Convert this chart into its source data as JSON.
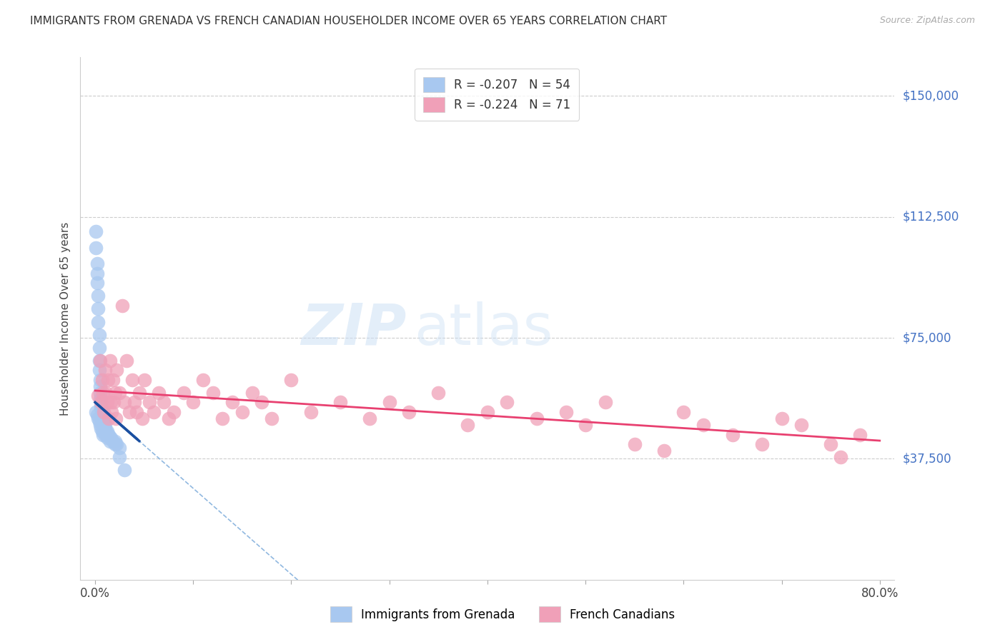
{
  "title": "IMMIGRANTS FROM GRENADA VS FRENCH CANADIAN HOUSEHOLDER INCOME OVER 65 YEARS CORRELATION CHART",
  "source": "Source: ZipAtlas.com",
  "ylabel": "Householder Income Over 65 years",
  "xlabel_ticks": [
    "0.0%",
    "",
    "",
    "",
    "",
    "",
    "",
    "",
    "80.0%"
  ],
  "xlabel_vals": [
    0.0,
    0.1,
    0.2,
    0.3,
    0.4,
    0.5,
    0.6,
    0.7,
    0.8
  ],
  "ytick_labels": [
    "$150,000",
    "$112,500",
    "$75,000",
    "$37,500"
  ],
  "ytick_vals": [
    150000,
    112500,
    75000,
    37500
  ],
  "ylim": [
    0,
    162000
  ],
  "xlim": [
    -0.015,
    0.815
  ],
  "legend1_label": "R = -0.207   N = 54",
  "legend2_label": "R = -0.224   N = 71",
  "scatter_blue_color": "#a8c8f0",
  "scatter_pink_color": "#f0a0b8",
  "trendline_blue_color": "#1a4fa0",
  "trendline_pink_color": "#e84070",
  "trendline_dashed_color": "#90b8e0",
  "watermark_zip": "ZIP",
  "watermark_atlas": "atlas",
  "blue_scatter_x": [
    0.001,
    0.001,
    0.002,
    0.002,
    0.002,
    0.003,
    0.003,
    0.003,
    0.004,
    0.004,
    0.004,
    0.004,
    0.005,
    0.005,
    0.005,
    0.005,
    0.006,
    0.006,
    0.006,
    0.007,
    0.007,
    0.007,
    0.008,
    0.008,
    0.009,
    0.009,
    0.01,
    0.01,
    0.01,
    0.011,
    0.012,
    0.012,
    0.013,
    0.014,
    0.015,
    0.016,
    0.018,
    0.02,
    0.022,
    0.025,
    0.001,
    0.002,
    0.003,
    0.004,
    0.005,
    0.006,
    0.007,
    0.008,
    0.01,
    0.012,
    0.015,
    0.02,
    0.025,
    0.03
  ],
  "blue_scatter_y": [
    108000,
    103000,
    98000,
    95000,
    92000,
    88000,
    84000,
    80000,
    76000,
    72000,
    68000,
    65000,
    62000,
    60000,
    58000,
    56000,
    55000,
    54000,
    53000,
    52000,
    51000,
    50000,
    50000,
    49000,
    49000,
    48000,
    48000,
    47000,
    46000,
    46000,
    46000,
    45000,
    45000,
    45000,
    44000,
    44000,
    43000,
    43000,
    42000,
    41000,
    52000,
    51000,
    50000,
    49000,
    48000,
    47000,
    46000,
    45000,
    45000,
    44000,
    43000,
    42000,
    38000,
    34000
  ],
  "pink_scatter_x": [
    0.003,
    0.005,
    0.006,
    0.007,
    0.008,
    0.009,
    0.01,
    0.011,
    0.012,
    0.013,
    0.014,
    0.015,
    0.016,
    0.017,
    0.018,
    0.019,
    0.02,
    0.021,
    0.022,
    0.025,
    0.028,
    0.03,
    0.032,
    0.035,
    0.038,
    0.04,
    0.042,
    0.045,
    0.048,
    0.05,
    0.055,
    0.06,
    0.065,
    0.07,
    0.075,
    0.08,
    0.09,
    0.1,
    0.11,
    0.12,
    0.13,
    0.14,
    0.15,
    0.16,
    0.17,
    0.18,
    0.2,
    0.22,
    0.25,
    0.28,
    0.3,
    0.32,
    0.35,
    0.38,
    0.4,
    0.42,
    0.45,
    0.48,
    0.5,
    0.52,
    0.55,
    0.58,
    0.6,
    0.62,
    0.65,
    0.68,
    0.7,
    0.72,
    0.75,
    0.76,
    0.78
  ],
  "pink_scatter_y": [
    57000,
    68000,
    55000,
    62000,
    58000,
    52000,
    65000,
    58000,
    55000,
    62000,
    50000,
    68000,
    55000,
    52000,
    62000,
    55000,
    58000,
    50000,
    65000,
    58000,
    85000,
    55000,
    68000,
    52000,
    62000,
    55000,
    52000,
    58000,
    50000,
    62000,
    55000,
    52000,
    58000,
    55000,
    50000,
    52000,
    58000,
    55000,
    62000,
    58000,
    50000,
    55000,
    52000,
    58000,
    55000,
    50000,
    62000,
    52000,
    55000,
    50000,
    55000,
    52000,
    58000,
    48000,
    52000,
    55000,
    50000,
    52000,
    48000,
    55000,
    42000,
    40000,
    52000,
    48000,
    45000,
    42000,
    50000,
    48000,
    42000,
    38000,
    45000
  ]
}
